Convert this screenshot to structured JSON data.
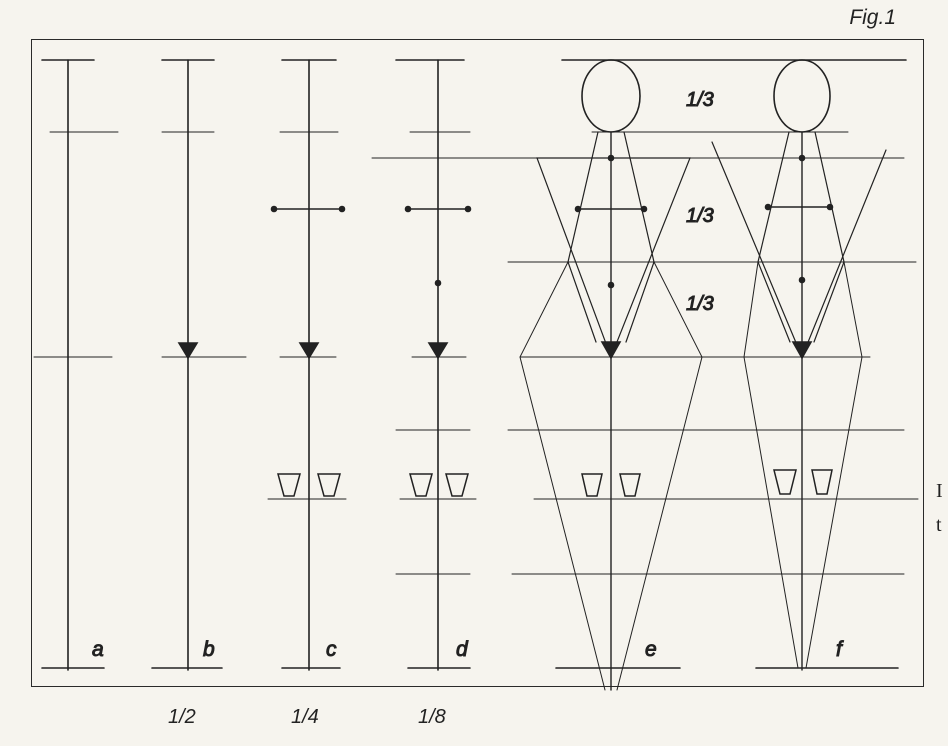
{
  "figure_label": "Fig.1",
  "columns": [
    {
      "id": "a",
      "letter": "a",
      "ratio": ""
    },
    {
      "id": "b",
      "letter": "b",
      "ratio": "1/2"
    },
    {
      "id": "c",
      "letter": "c",
      "ratio": "1/4"
    },
    {
      "id": "d",
      "letter": "d",
      "ratio": "1/8"
    },
    {
      "id": "e",
      "letter": "e",
      "ratio": ""
    },
    {
      "id": "f",
      "letter": "f",
      "ratio": ""
    }
  ],
  "thirds_labels": [
    "1/3",
    "1/3",
    "1/3"
  ],
  "side_text": [
    "I",
    "t"
  ]
}
